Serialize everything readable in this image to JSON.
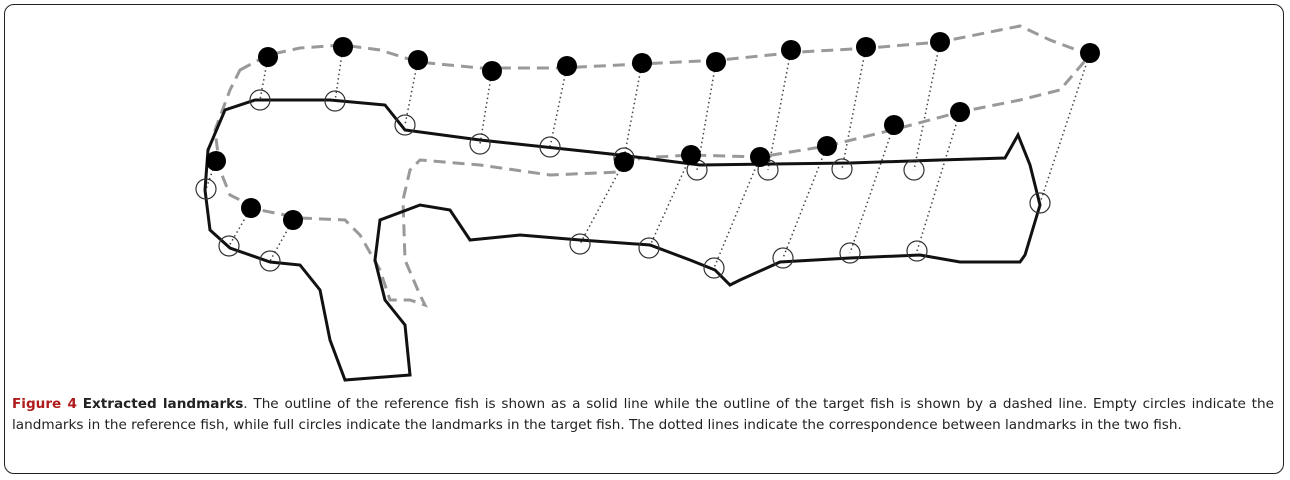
{
  "caption": {
    "label": "Figure 4",
    "title": "Extracted landmarks",
    "text": ". The outline of the reference fish is shown as a solid line while the outline of the target fish is shown by a dashed line. Empty circles indicate the landmarks in the reference fish, while full circles indicate the landmarks in the target fish. The dotted lines indicate the correspondence between landmarks in the two fish."
  }
}
